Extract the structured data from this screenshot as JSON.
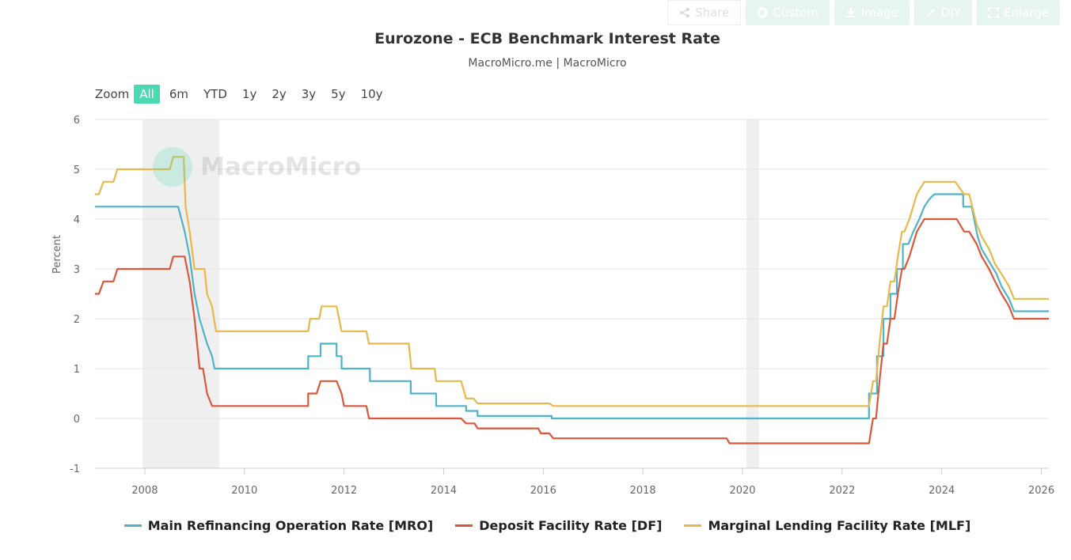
{
  "toolbar": {
    "buttons": [
      {
        "label": "Share",
        "icon": "share-icon"
      },
      {
        "label": "Custom",
        "icon": "gear-icon"
      },
      {
        "label": "Image",
        "icon": "download-icon"
      },
      {
        "label": "DIY",
        "icon": "pencil-icon"
      },
      {
        "label": "Enlarge",
        "icon": "expand-icon"
      }
    ]
  },
  "zoom": {
    "label": "Zoom",
    "options": [
      "All",
      "6m",
      "YTD",
      "1y",
      "2y",
      "3y",
      "5y",
      "10y"
    ],
    "selected": "All",
    "accent": "#4ad9b3"
  },
  "watermark": "MacroMicro",
  "chart_data": {
    "type": "line",
    "title": "Eurozone - ECB Benchmark Interest Rate",
    "subtitle": "MacroMicro.me | MacroMicro",
    "xlabel": "",
    "ylabel": "Percent",
    "xlim": [
      2007.0,
      2026.15
    ],
    "ylim": [
      -1,
      6
    ],
    "yticks": [
      6,
      5,
      4,
      3,
      2,
      1,
      0,
      -1
    ],
    "xticks": [
      2008,
      2010,
      2012,
      2014,
      2016,
      2018,
      2020,
      2022,
      2024,
      2026
    ],
    "grid": true,
    "legend_position": "bottom",
    "recession_bands": [
      [
        2007.95,
        2009.5
      ],
      [
        2020.08,
        2020.33
      ]
    ],
    "series": [
      {
        "name": "Main Refinancing Operation Rate [MRO]",
        "color": "#4fb3c8",
        "points": [
          [
            2007.0,
            4.25
          ],
          [
            2008.67,
            4.25
          ],
          [
            2008.8,
            3.75
          ],
          [
            2008.9,
            3.25
          ],
          [
            2009.0,
            2.5
          ],
          [
            2009.1,
            2.0
          ],
          [
            2009.25,
            1.5
          ],
          [
            2009.35,
            1.25
          ],
          [
            2009.4,
            1.0
          ],
          [
            2011.28,
            1.0
          ],
          [
            2011.28,
            1.25
          ],
          [
            2011.53,
            1.25
          ],
          [
            2011.53,
            1.5
          ],
          [
            2011.85,
            1.5
          ],
          [
            2011.85,
            1.25
          ],
          [
            2011.95,
            1.25
          ],
          [
            2011.95,
            1.0
          ],
          [
            2012.52,
            1.0
          ],
          [
            2012.52,
            0.75
          ],
          [
            2013.34,
            0.75
          ],
          [
            2013.34,
            0.5
          ],
          [
            2013.85,
            0.5
          ],
          [
            2013.85,
            0.25
          ],
          [
            2014.45,
            0.25
          ],
          [
            2014.45,
            0.15
          ],
          [
            2014.68,
            0.15
          ],
          [
            2014.68,
            0.05
          ],
          [
            2016.17,
            0.05
          ],
          [
            2016.17,
            0.0
          ],
          [
            2022.54,
            0.0
          ],
          [
            2022.54,
            0.5
          ],
          [
            2022.7,
            0.5
          ],
          [
            2022.7,
            1.25
          ],
          [
            2022.83,
            1.25
          ],
          [
            2022.83,
            2.0
          ],
          [
            2022.97,
            2.0
          ],
          [
            2022.97,
            2.5
          ],
          [
            2023.1,
            2.5
          ],
          [
            2023.1,
            3.0
          ],
          [
            2023.22,
            3.0
          ],
          [
            2023.22,
            3.5
          ],
          [
            2023.33,
            3.5
          ],
          [
            2023.43,
            3.75
          ],
          [
            2023.55,
            4.0
          ],
          [
            2023.65,
            4.25
          ],
          [
            2023.75,
            4.4
          ],
          [
            2023.85,
            4.5
          ],
          [
            2024.43,
            4.5
          ],
          [
            2024.43,
            4.25
          ],
          [
            2024.6,
            4.25
          ],
          [
            2024.72,
            3.65
          ],
          [
            2024.8,
            3.4
          ],
          [
            2024.95,
            3.15
          ],
          [
            2025.1,
            2.9
          ],
          [
            2025.2,
            2.65
          ],
          [
            2025.35,
            2.4
          ],
          [
            2025.45,
            2.15
          ],
          [
            2026.15,
            2.15
          ]
        ]
      },
      {
        "name": "Deposit Facility Rate [DF]",
        "color": "#d9583b",
        "points": [
          [
            2007.0,
            2.5
          ],
          [
            2007.08,
            2.5
          ],
          [
            2007.17,
            2.75
          ],
          [
            2007.37,
            2.75
          ],
          [
            2007.45,
            3.0
          ],
          [
            2008.5,
            3.0
          ],
          [
            2008.57,
            3.25
          ],
          [
            2008.8,
            3.25
          ],
          [
            2008.85,
            3.0
          ],
          [
            2008.9,
            2.75
          ],
          [
            2009.0,
            2.0
          ],
          [
            2009.1,
            1.0
          ],
          [
            2009.17,
            1.0
          ],
          [
            2009.25,
            0.5
          ],
          [
            2009.35,
            0.25
          ],
          [
            2011.28,
            0.25
          ],
          [
            2011.28,
            0.5
          ],
          [
            2011.45,
            0.5
          ],
          [
            2011.53,
            0.75
          ],
          [
            2011.85,
            0.75
          ],
          [
            2011.95,
            0.5
          ],
          [
            2012.0,
            0.25
          ],
          [
            2012.45,
            0.25
          ],
          [
            2012.5,
            0.0
          ],
          [
            2014.35,
            0.0
          ],
          [
            2014.45,
            -0.1
          ],
          [
            2014.62,
            -0.1
          ],
          [
            2014.68,
            -0.2
          ],
          [
            2015.9,
            -0.2
          ],
          [
            2015.95,
            -0.3
          ],
          [
            2016.12,
            -0.3
          ],
          [
            2016.2,
            -0.4
          ],
          [
            2019.68,
            -0.4
          ],
          [
            2019.74,
            -0.5
          ],
          [
            2022.54,
            -0.5
          ],
          [
            2022.62,
            0.0
          ],
          [
            2022.68,
            0.0
          ],
          [
            2022.75,
            0.75
          ],
          [
            2022.83,
            1.5
          ],
          [
            2022.9,
            1.5
          ],
          [
            2022.97,
            2.0
          ],
          [
            2023.05,
            2.0
          ],
          [
            2023.12,
            2.5
          ],
          [
            2023.2,
            3.0
          ],
          [
            2023.25,
            3.0
          ],
          [
            2023.35,
            3.25
          ],
          [
            2023.5,
            3.75
          ],
          [
            2023.65,
            4.0
          ],
          [
            2024.27,
            4.0
          ],
          [
            2024.3,
            4.0
          ],
          [
            2024.45,
            3.75
          ],
          [
            2024.55,
            3.75
          ],
          [
            2024.7,
            3.5
          ],
          [
            2024.8,
            3.25
          ],
          [
            2024.95,
            3.0
          ],
          [
            2025.07,
            2.75
          ],
          [
            2025.2,
            2.5
          ],
          [
            2025.35,
            2.25
          ],
          [
            2025.45,
            2.0
          ],
          [
            2026.15,
            2.0
          ]
        ]
      },
      {
        "name": "Marginal Lending Facility Rate [MLF]",
        "color": "#e8b84d",
        "points": [
          [
            2007.0,
            4.5
          ],
          [
            2007.08,
            4.5
          ],
          [
            2007.17,
            4.75
          ],
          [
            2007.37,
            4.75
          ],
          [
            2007.45,
            5.0
          ],
          [
            2008.5,
            5.0
          ],
          [
            2008.57,
            5.25
          ],
          [
            2008.78,
            5.25
          ],
          [
            2008.82,
            4.25
          ],
          [
            2008.9,
            3.75
          ],
          [
            2009.0,
            3.0
          ],
          [
            2009.2,
            3.0
          ],
          [
            2009.25,
            2.5
          ],
          [
            2009.35,
            2.25
          ],
          [
            2009.43,
            1.75
          ],
          [
            2011.28,
            1.75
          ],
          [
            2011.32,
            2.0
          ],
          [
            2011.5,
            2.0
          ],
          [
            2011.55,
            2.25
          ],
          [
            2011.85,
            2.25
          ],
          [
            2011.95,
            1.75
          ],
          [
            2012.45,
            1.75
          ],
          [
            2012.5,
            1.5
          ],
          [
            2013.3,
            1.5
          ],
          [
            2013.35,
            1.0
          ],
          [
            2013.82,
            1.0
          ],
          [
            2013.85,
            0.75
          ],
          [
            2014.35,
            0.75
          ],
          [
            2014.45,
            0.4
          ],
          [
            2014.6,
            0.4
          ],
          [
            2014.68,
            0.3
          ],
          [
            2016.12,
            0.3
          ],
          [
            2016.2,
            0.25
          ],
          [
            2022.54,
            0.25
          ],
          [
            2022.62,
            0.75
          ],
          [
            2022.68,
            0.75
          ],
          [
            2022.75,
            1.5
          ],
          [
            2022.83,
            2.25
          ],
          [
            2022.9,
            2.25
          ],
          [
            2022.97,
            2.75
          ],
          [
            2023.05,
            2.75
          ],
          [
            2023.12,
            3.25
          ],
          [
            2023.2,
            3.75
          ],
          [
            2023.25,
            3.75
          ],
          [
            2023.35,
            4.0
          ],
          [
            2023.5,
            4.5
          ],
          [
            2023.65,
            4.75
          ],
          [
            2024.27,
            4.75
          ],
          [
            2024.45,
            4.5
          ],
          [
            2024.55,
            4.5
          ],
          [
            2024.7,
            3.9
          ],
          [
            2024.8,
            3.65
          ],
          [
            2024.95,
            3.4
          ],
          [
            2025.07,
            3.1
          ],
          [
            2025.2,
            2.9
          ],
          [
            2025.35,
            2.65
          ],
          [
            2025.45,
            2.4
          ],
          [
            2026.15,
            2.4
          ]
        ]
      }
    ]
  }
}
